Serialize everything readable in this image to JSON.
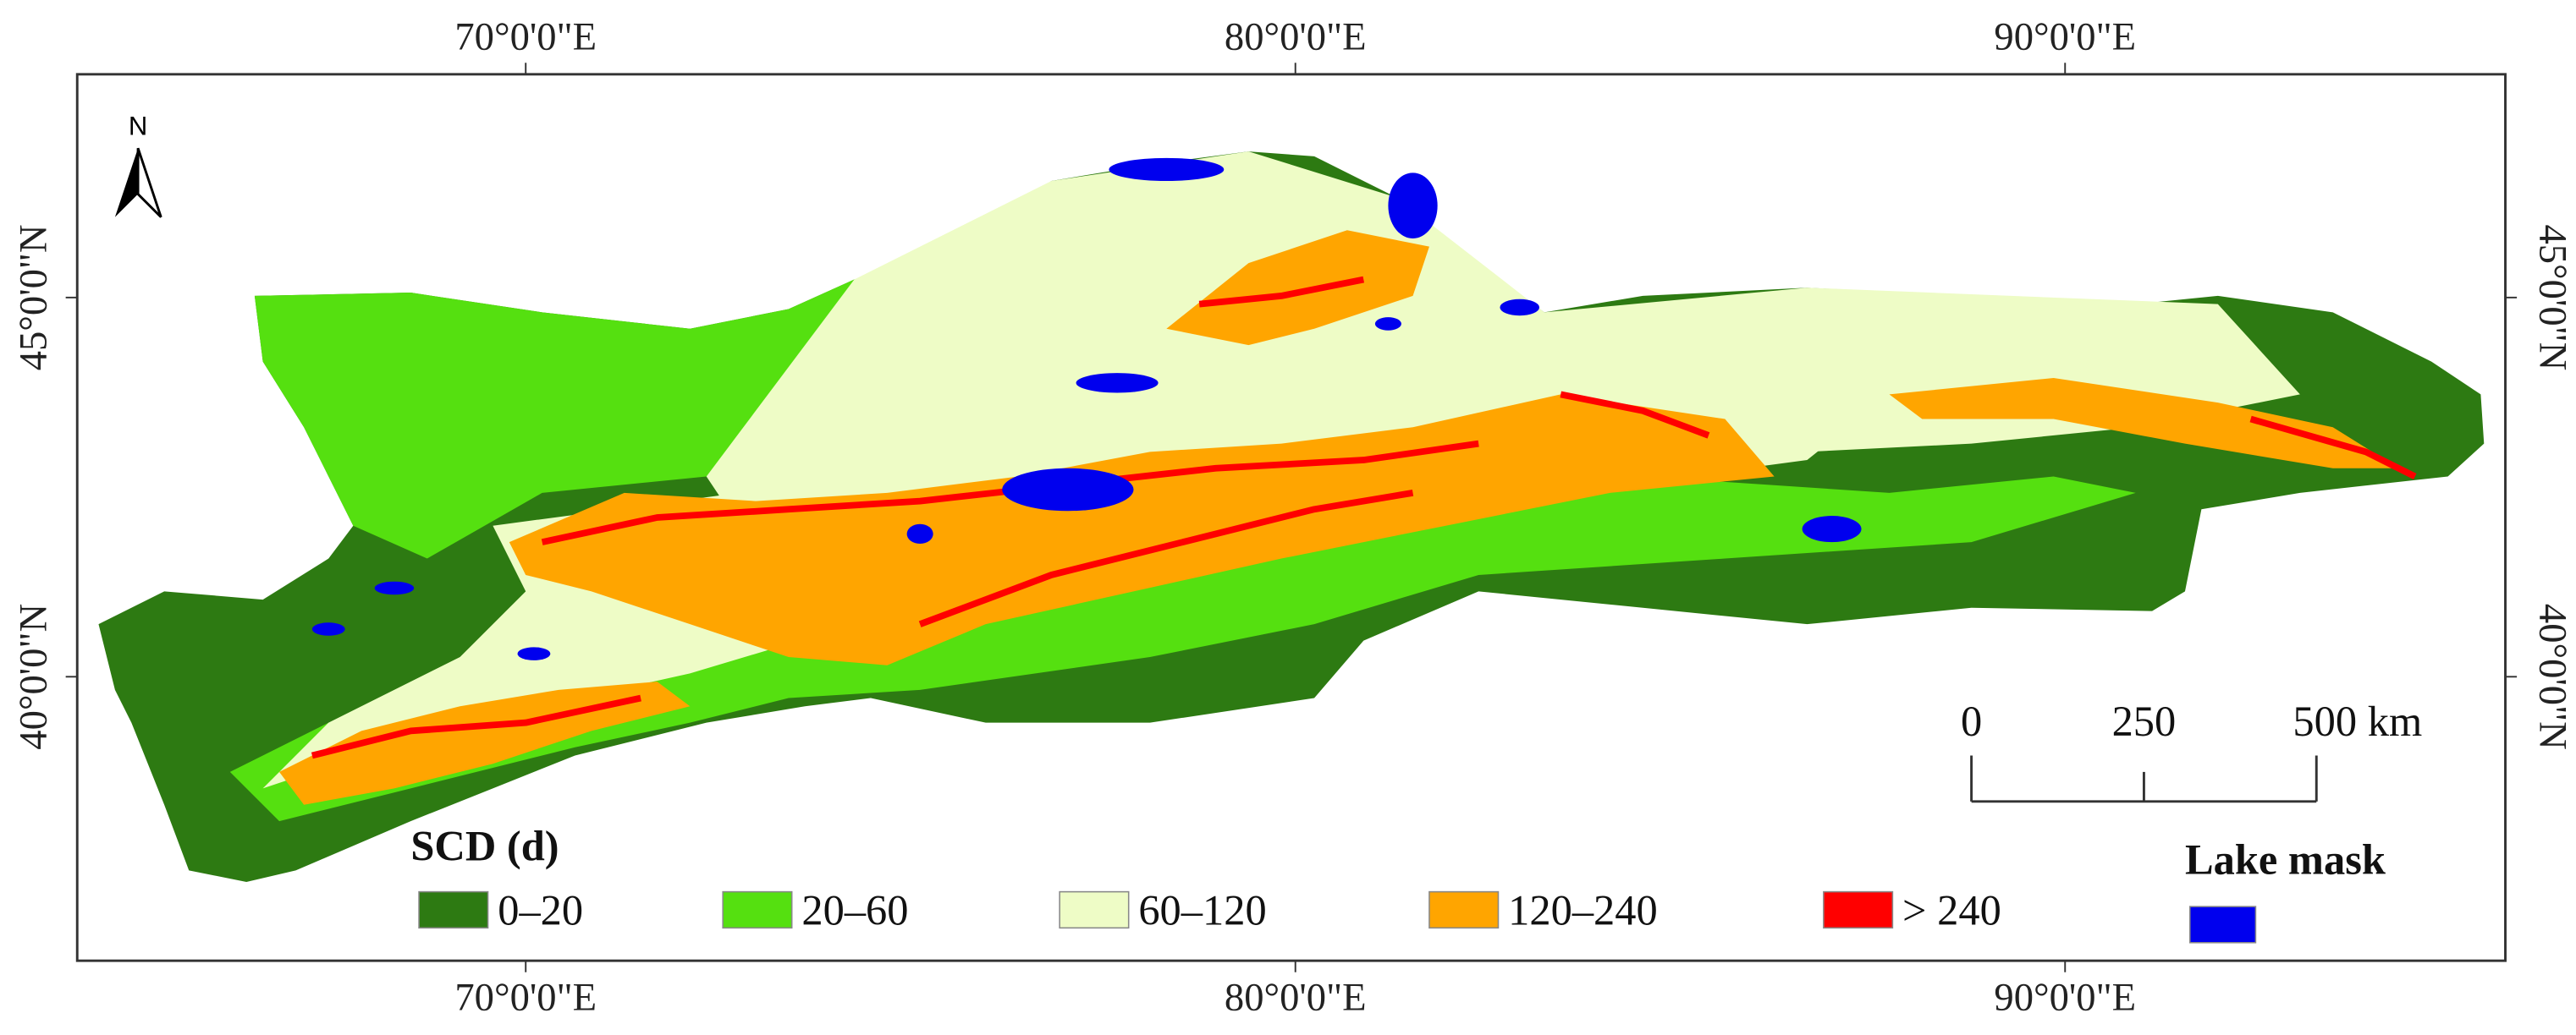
{
  "north_arrow": "N",
  "longitude_ticks": [
    {
      "value": 70,
      "label": "70°0'0\"E"
    },
    {
      "value": 80,
      "label": "80°0'0\"E"
    },
    {
      "value": 90,
      "label": "90°0'0\"E"
    }
  ],
  "latitude_ticks": [
    {
      "value": 45,
      "label": "45°0'0\"N"
    },
    {
      "value": 40,
      "label": "40°0'0\"N"
    }
  ],
  "legend": {
    "title": "SCD (d)",
    "items": [
      {
        "label": "0–20",
        "color": "#2d7a12"
      },
      {
        "label": "20–60",
        "color": "#55e010"
      },
      {
        "label": "60–120",
        "color": "#eefcc6"
      },
      {
        "label": "120–240",
        "color": "#ffa500"
      },
      {
        "label": "> 240",
        "color": "#ff0000"
      }
    ],
    "lake": {
      "label": "Lake mask",
      "color": "#0000ee"
    }
  },
  "scale_bar": {
    "labels": [
      "0",
      "250",
      "500 km"
    ]
  }
}
